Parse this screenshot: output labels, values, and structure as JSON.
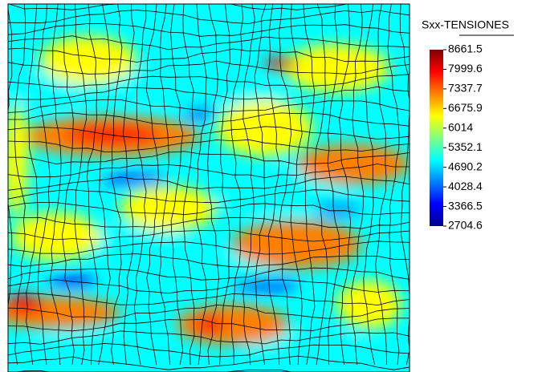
{
  "chart_data": {
    "type": "contour",
    "colorbar_title": "Sxx-TENSIONES",
    "clim": [
      2704.6,
      8661.5
    ],
    "colorbar_ticks": [
      8661.5,
      7999.6,
      7337.7,
      6675.9,
      6014,
      5352.1,
      4690.2,
      4028.4,
      3366.5,
      2704.6
    ],
    "colormap": [
      "#00008f",
      "#0000ff",
      "#0080ff",
      "#00ffff",
      "#80ff80",
      "#ffff00",
      "#ff8000",
      "#ff0000",
      "#800000"
    ],
    "mesh": true
  }
}
